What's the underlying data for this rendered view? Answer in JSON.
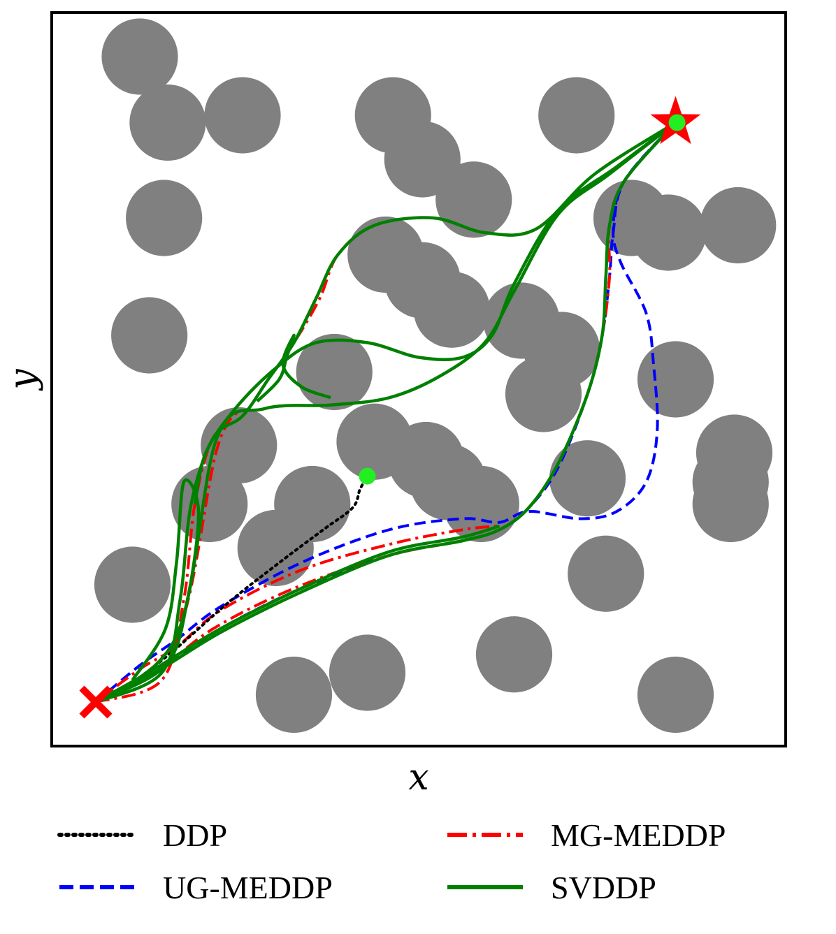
{
  "chart_data": {
    "type": "line",
    "title": "",
    "xlabel": "x",
    "ylabel": "y",
    "xlim": [
      0,
      10
    ],
    "ylim": [
      0,
      10
    ],
    "show_ticks": false,
    "grid": false,
    "legend_position": "bottom",
    "start": {
      "x": 0.6,
      "y": 0.6,
      "marker": "x",
      "color": "#ff0000"
    },
    "goal": {
      "x": 8.5,
      "y": 8.5,
      "marker": "star",
      "color": "#ff0000"
    },
    "endpoints": [
      {
        "x": 8.52,
        "y": 8.5,
        "color": "#22ee22"
      },
      {
        "x": 4.3,
        "y": 3.68,
        "color": "#22ee22"
      }
    ],
    "obstacles_color": "#808080",
    "obstacles": [
      {
        "x": 1.2,
        "y": 9.4,
        "r": 0.52
      },
      {
        "x": 1.58,
        "y": 8.5,
        "r": 0.52
      },
      {
        "x": 2.6,
        "y": 8.6,
        "r": 0.52
      },
      {
        "x": 4.65,
        "y": 8.6,
        "r": 0.52
      },
      {
        "x": 5.05,
        "y": 8.0,
        "r": 0.52
      },
      {
        "x": 5.75,
        "y": 7.45,
        "r": 0.52
      },
      {
        "x": 7.15,
        "y": 8.6,
        "r": 0.52
      },
      {
        "x": 1.53,
        "y": 7.2,
        "r": 0.52
      },
      {
        "x": 7.9,
        "y": 7.2,
        "r": 0.52
      },
      {
        "x": 8.4,
        "y": 7.0,
        "r": 0.52
      },
      {
        "x": 9.35,
        "y": 7.1,
        "r": 0.52
      },
      {
        "x": 4.55,
        "y": 6.7,
        "r": 0.52
      },
      {
        "x": 5.05,
        "y": 6.35,
        "r": 0.52
      },
      {
        "x": 5.45,
        "y": 5.95,
        "r": 0.52
      },
      {
        "x": 6.4,
        "y": 5.8,
        "r": 0.52
      },
      {
        "x": 6.95,
        "y": 5.4,
        "r": 0.52
      },
      {
        "x": 6.7,
        "y": 4.8,
        "r": 0.52
      },
      {
        "x": 1.33,
        "y": 5.6,
        "r": 0.52
      },
      {
        "x": 3.85,
        "y": 5.1,
        "r": 0.52
      },
      {
        "x": 8.5,
        "y": 5.0,
        "r": 0.52
      },
      {
        "x": 2.55,
        "y": 4.1,
        "r": 0.52
      },
      {
        "x": 4.4,
        "y": 4.15,
        "r": 0.52
      },
      {
        "x": 5.1,
        "y": 3.9,
        "r": 0.52
      },
      {
        "x": 5.4,
        "y": 3.6,
        "r": 0.52
      },
      {
        "x": 5.85,
        "y": 3.3,
        "r": 0.52
      },
      {
        "x": 2.15,
        "y": 3.3,
        "r": 0.52
      },
      {
        "x": 3.55,
        "y": 3.3,
        "r": 0.52
      },
      {
        "x": 3.05,
        "y": 2.7,
        "r": 0.52
      },
      {
        "x": 7.3,
        "y": 3.65,
        "r": 0.52
      },
      {
        "x": 9.3,
        "y": 4.0,
        "r": 0.52
      },
      {
        "x": 9.25,
        "y": 3.6,
        "r": 0.52
      },
      {
        "x": 9.25,
        "y": 3.3,
        "r": 0.52
      },
      {
        "x": 1.1,
        "y": 2.2,
        "r": 0.52
      },
      {
        "x": 7.55,
        "y": 2.35,
        "r": 0.52
      },
      {
        "x": 6.3,
        "y": 1.25,
        "r": 0.52
      },
      {
        "x": 4.3,
        "y": 1.0,
        "r": 0.52
      },
      {
        "x": 3.3,
        "y": 0.7,
        "r": 0.52
      },
      {
        "x": 8.5,
        "y": 0.7,
        "r": 0.52
      }
    ],
    "series": [
      {
        "name": "DDP",
        "color": "#000000",
        "dash": "dotted",
        "paths": [
          [
            [
              0.6,
              0.6
            ],
            [
              1.0,
              0.8
            ],
            [
              1.6,
              1.25
            ],
            [
              2.4,
              1.95
            ],
            [
              3.1,
              2.5
            ],
            [
              3.7,
              2.95
            ],
            [
              4.1,
              3.25
            ],
            [
              4.2,
              3.5
            ],
            [
              4.3,
              3.68
            ]
          ]
        ]
      },
      {
        "name": "MG-MEDDP",
        "color": "#ff0000",
        "dash": "dashdot",
        "paths": [
          [
            [
              0.6,
              0.6
            ],
            [
              1.4,
              1.0
            ],
            [
              2.2,
              1.6
            ],
            [
              3.3,
              2.15
            ],
            [
              4.6,
              2.6
            ],
            [
              5.6,
              2.8
            ],
            [
              6.1,
              2.95
            ],
            [
              6.5,
              3.25
            ],
            [
              6.9,
              3.85
            ],
            [
              7.3,
              4.8
            ],
            [
              7.5,
              5.6
            ],
            [
              7.6,
              6.4
            ],
            [
              7.6,
              7.1
            ],
            [
              7.8,
              7.7
            ],
            [
              8.5,
              8.5
            ]
          ],
          [
            [
              0.6,
              0.6
            ],
            [
              1.2,
              1.05
            ],
            [
              1.7,
              1.35
            ],
            [
              2.3,
              1.85
            ],
            [
              3.4,
              2.4
            ],
            [
              4.6,
              2.75
            ],
            [
              5.6,
              2.95
            ],
            [
              6.1,
              3.0
            ]
          ],
          [
            [
              0.6,
              0.6
            ],
            [
              1.5,
              0.9
            ],
            [
              1.8,
              2.0
            ],
            [
              1.95,
              3.3
            ],
            [
              2.2,
              4.2
            ],
            [
              2.6,
              4.5
            ],
            [
              2.95,
              5.0
            ],
            [
              3.3,
              5.5
            ],
            [
              3.65,
              6.1
            ],
            [
              3.9,
              6.7
            ],
            [
              4.4,
              7.1
            ],
            [
              5.2,
              7.2
            ],
            [
              5.9,
              7.0
            ],
            [
              6.6,
              7.05
            ],
            [
              7.4,
              7.8
            ],
            [
              8.5,
              8.5
            ]
          ],
          [
            [
              0.6,
              0.6
            ],
            [
              1.7,
              1.5
            ],
            [
              2.3,
              4.2
            ],
            [
              2.9,
              4.6
            ],
            [
              3.8,
              4.65
            ],
            [
              4.6,
              4.75
            ],
            [
              5.3,
              5.05
            ],
            [
              5.9,
              5.5
            ],
            [
              6.3,
              6.2
            ],
            [
              6.9,
              7.25
            ],
            [
              7.6,
              7.8
            ],
            [
              8.5,
              8.5
            ]
          ]
        ]
      },
      {
        "name": "UG-MEDDP",
        "color": "#0000ff",
        "dash": "dashed",
        "paths": [
          [
            [
              0.6,
              0.6
            ],
            [
              1.4,
              1.0
            ],
            [
              2.3,
              1.6
            ],
            [
              3.4,
              2.15
            ],
            [
              4.6,
              2.6
            ],
            [
              5.6,
              2.8
            ],
            [
              6.1,
              2.95
            ],
            [
              6.5,
              3.25
            ],
            [
              6.9,
              3.8
            ],
            [
              7.3,
              4.8
            ],
            [
              7.5,
              5.6
            ],
            [
              7.6,
              6.4
            ],
            [
              7.65,
              7.0
            ],
            [
              7.8,
              7.7
            ],
            [
              8.5,
              8.5
            ]
          ],
          [
            [
              0.6,
              0.6
            ],
            [
              1.2,
              1.1
            ],
            [
              1.7,
              1.45
            ],
            [
              2.3,
              1.9
            ],
            [
              3.4,
              2.5
            ],
            [
              4.6,
              2.95
            ],
            [
              5.6,
              3.1
            ],
            [
              6.1,
              3.05
            ],
            [
              6.5,
              3.2
            ],
            [
              7.2,
              3.1
            ],
            [
              7.7,
              3.2
            ],
            [
              8.1,
              3.6
            ],
            [
              8.25,
              4.3
            ],
            [
              8.2,
              5.2
            ],
            [
              8.1,
              5.9
            ],
            [
              7.75,
              6.6
            ],
            [
              7.65,
              7.05
            ],
            [
              7.8,
              7.7
            ],
            [
              8.5,
              8.5
            ]
          ]
        ]
      },
      {
        "name": "SVDDP",
        "color": "#008000",
        "dash": "solid",
        "paths": [
          [
            [
              0.6,
              0.6
            ],
            [
              1.4,
              1.0
            ],
            [
              2.3,
              1.55
            ],
            [
              3.4,
              2.1
            ],
            [
              4.6,
              2.6
            ],
            [
              5.6,
              2.8
            ],
            [
              6.1,
              2.95
            ],
            [
              6.5,
              3.25
            ],
            [
              6.9,
              3.85
            ],
            [
              7.3,
              4.8
            ],
            [
              7.5,
              5.6
            ],
            [
              7.55,
              6.4
            ],
            [
              7.6,
              7.1
            ],
            [
              7.8,
              7.7
            ],
            [
              8.5,
              8.5
            ]
          ],
          [
            [
              0.6,
              0.6
            ],
            [
              1.4,
              1.05
            ],
            [
              2.3,
              1.6
            ],
            [
              3.4,
              2.15
            ],
            [
              4.6,
              2.65
            ],
            [
              5.6,
              2.85
            ],
            [
              6.1,
              3.0
            ]
          ],
          [
            [
              0.6,
              0.6
            ],
            [
              1.5,
              1.0
            ],
            [
              1.75,
              2.0
            ],
            [
              1.9,
              3.3
            ],
            [
              2.2,
              4.2
            ],
            [
              2.6,
              4.5
            ],
            [
              2.95,
              5.0
            ],
            [
              3.3,
              5.5
            ],
            [
              3.6,
              6.1
            ],
            [
              3.9,
              6.7
            ],
            [
              4.4,
              7.1
            ],
            [
              5.2,
              7.2
            ],
            [
              5.9,
              7.0
            ],
            [
              6.6,
              7.05
            ],
            [
              7.4,
              7.8
            ],
            [
              8.5,
              8.5
            ]
          ],
          [
            [
              0.6,
              0.6
            ],
            [
              1.7,
              1.5
            ],
            [
              2.25,
              4.2
            ],
            [
              2.9,
              4.6
            ],
            [
              3.8,
              4.65
            ],
            [
              4.6,
              4.75
            ],
            [
              5.3,
              5.05
            ],
            [
              5.9,
              5.5
            ],
            [
              6.3,
              6.2
            ],
            [
              6.9,
              7.25
            ],
            [
              7.6,
              7.8
            ],
            [
              8.5,
              8.5
            ]
          ],
          [
            [
              1.95,
              3.3
            ],
            [
              2.1,
              4.0
            ],
            [
              2.5,
              4.6
            ],
            [
              3.05,
              5.15
            ],
            [
              3.6,
              5.5
            ],
            [
              4.3,
              5.5
            ],
            [
              5.0,
              5.3
            ],
            [
              5.6,
              5.3
            ],
            [
              6.0,
              5.6
            ],
            [
              6.3,
              6.3
            ],
            [
              6.9,
              7.3
            ],
            [
              7.7,
              7.9
            ],
            [
              8.5,
              8.5
            ]
          ],
          [
            [
              2.8,
              4.7
            ],
            [
              3.1,
              5.0
            ],
            [
              3.2,
              5.3
            ],
            [
              3.3,
              5.6
            ],
            [
              3.15,
              5.2
            ],
            [
              3.4,
              4.9
            ],
            [
              3.8,
              4.75
            ]
          ],
          [
            [
              0.6,
              0.6
            ],
            [
              1.55,
              1.1
            ],
            [
              1.85,
              2.0
            ],
            [
              2.0,
              3.2
            ],
            [
              1.8,
              3.6
            ],
            [
              1.7,
              2.5
            ],
            [
              1.55,
              1.6
            ],
            [
              1.1,
              0.9
            ]
          ]
        ]
      }
    ],
    "legend": [
      {
        "label": "DDP",
        "series": 0
      },
      {
        "label": "MG-MEDDP",
        "series": 1
      },
      {
        "label": "UG-MEDDP",
        "series": 2
      },
      {
        "label": "SVDDP",
        "series": 3
      }
    ]
  }
}
